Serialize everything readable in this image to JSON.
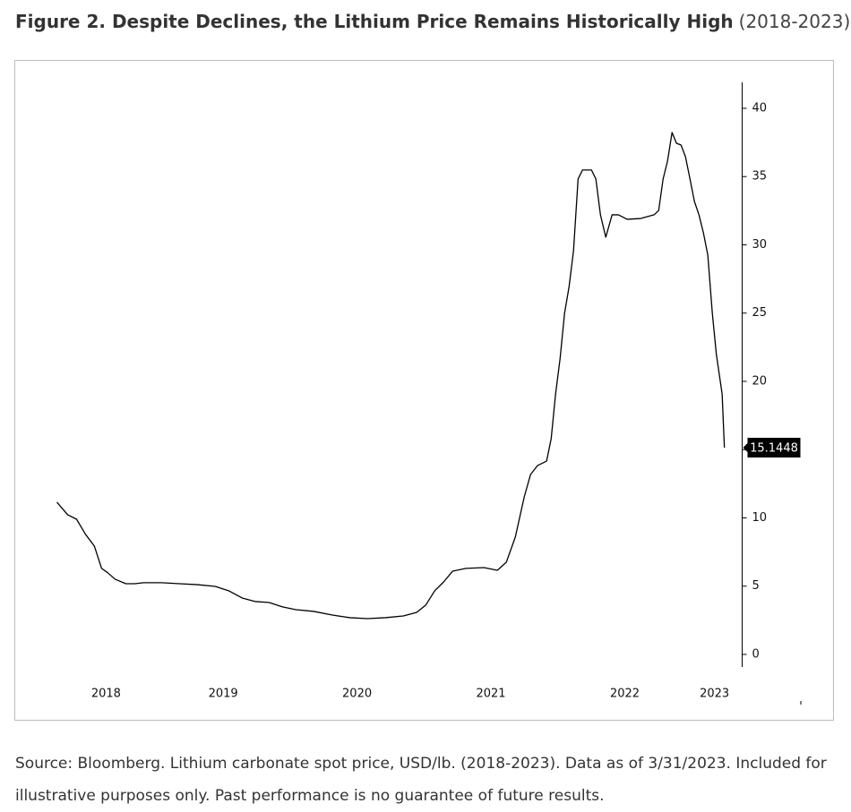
{
  "chart_data": {
    "type": "line",
    "title": "Figure 2. Despite Declines, the Lithium Price Remains Historically High",
    "subtitle": "(2018-2023)",
    "source": "Source: Bloomberg. Lithium carbonate spot price, USD/lb. (2018-2023). Data as of 3/31/2023. Included for illustrative purposes only. Past performance is no guarantee of future results.",
    "color": "#000000",
    "x": [
      2018.258,
      2018.338,
      2018.405,
      2018.472,
      2018.538,
      2018.592,
      2018.639,
      2018.692,
      2018.773,
      2018.839,
      2018.906,
      2019.04,
      2019.174,
      2019.308,
      2019.441,
      2019.542,
      2019.642,
      2019.742,
      2019.843,
      2019.943,
      2020.043,
      2020.177,
      2020.311,
      2020.445,
      2020.579,
      2020.712,
      2020.846,
      2020.946,
      2021.013,
      2021.08,
      2021.147,
      2021.214,
      2021.314,
      2021.448,
      2021.548,
      2021.615,
      2021.682,
      2021.749,
      2021.796,
      2021.849,
      2021.916,
      2021.95,
      2021.983,
      2022.017,
      2022.05,
      2022.084,
      2022.117,
      2022.151,
      2022.184,
      2022.251,
      2022.284,
      2022.318,
      2022.358,
      2022.405,
      2022.452,
      2022.518,
      2022.619,
      2022.719,
      2022.753,
      2022.786,
      2022.819,
      2022.853,
      2022.886,
      2022.92,
      2022.953,
      2022.987,
      2023.02,
      2023.054,
      2023.087,
      2023.12,
      2023.154,
      2023.184,
      2023.227,
      2023.244
    ],
    "values": [
      11.15,
      10.23,
      9.9,
      8.79,
      7.93,
      6.3,
      5.97,
      5.51,
      5.18,
      5.18,
      5.25,
      5.25,
      5.18,
      5.11,
      4.98,
      4.66,
      4.13,
      3.87,
      3.8,
      3.48,
      3.28,
      3.15,
      2.89,
      2.69,
      2.62,
      2.69,
      2.82,
      3.08,
      3.61,
      4.66,
      5.31,
      6.1,
      6.3,
      6.36,
      6.16,
      6.75,
      8.59,
      11.54,
      13.18,
      13.84,
      14.16,
      15.8,
      19.08,
      21.7,
      24.98,
      26.95,
      29.57,
      34.82,
      35.48,
      35.48,
      34.82,
      32.2,
      30.56,
      32.2,
      32.2,
      31.87,
      31.93,
      32.2,
      32.52,
      34.82,
      36.13,
      38.23,
      37.44,
      37.31,
      36.46,
      34.82,
      33.18,
      32.2,
      30.89,
      29.25,
      24.98,
      21.97,
      19.08,
      15.1448
    ],
    "xlim": [
      2017.94,
      2023.38
    ],
    "xticks": [
      {
        "value": 2018.625,
        "label": "2018"
      },
      {
        "value": 2019.5,
        "label": "2019"
      },
      {
        "value": 2020.5,
        "label": "2020"
      },
      {
        "value": 2021.5,
        "label": "2021"
      },
      {
        "value": 2022.5,
        "label": "2022"
      },
      {
        "value": 2023.17,
        "label": "2023"
      }
    ],
    "ylim": [
      -0.9,
      41.9
    ],
    "yticks": [
      0,
      5,
      10,
      15,
      20,
      25,
      30,
      35,
      40
    ]
  }
}
